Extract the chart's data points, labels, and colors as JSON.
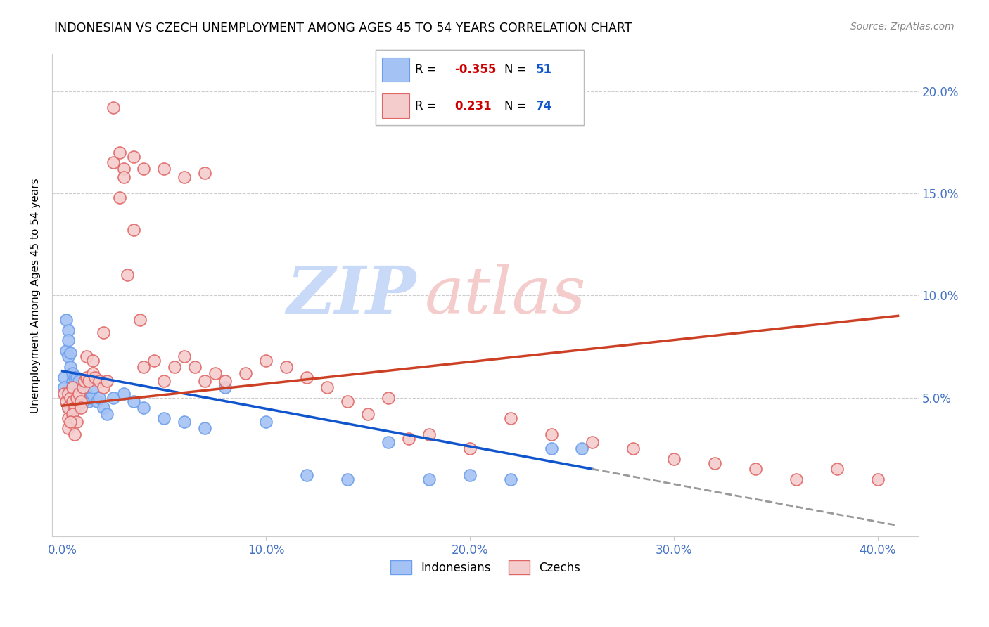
{
  "title": "INDONESIAN VS CZECH UNEMPLOYMENT AMONG AGES 45 TO 54 YEARS CORRELATION CHART",
  "source": "Source: ZipAtlas.com",
  "xlabel_ticks": [
    "0.0%",
    "10.0%",
    "20.0%",
    "30.0%",
    "40.0%"
  ],
  "xlabel_tick_vals": [
    0.0,
    0.1,
    0.2,
    0.3,
    0.4
  ],
  "ylabel_label": "Unemployment Among Ages 45 to 54 years",
  "ylabel_ticks": [
    "5.0%",
    "10.0%",
    "15.0%",
    "20.0%"
  ],
  "ylabel_tick_vals": [
    0.05,
    0.1,
    0.15,
    0.2
  ],
  "xmin": -0.005,
  "xmax": 0.42,
  "ymin": -0.018,
  "ymax": 0.218,
  "blue_color": "#a4c2f4",
  "pink_color": "#f4cccc",
  "blue_edge_color": "#6d9eeb",
  "pink_edge_color": "#e06666",
  "blue_line_color": "#1155cc",
  "pink_line_color": "#cc4125",
  "dashed_line_color": "#999999",
  "watermark_zip_color": "#c9daf8",
  "watermark_atlas_color": "#f4cccc",
  "legend_R_blue": "-0.355",
  "legend_N_blue": "51",
  "legend_R_pink": "0.231",
  "legend_N_pink": "74",
  "legend_label_blue": "Indonesians",
  "legend_label_pink": "Czechs",
  "indonesian_x": [
    0.001,
    0.001,
    0.002,
    0.002,
    0.003,
    0.003,
    0.003,
    0.004,
    0.004,
    0.005,
    0.005,
    0.005,
    0.006,
    0.006,
    0.007,
    0.007,
    0.008,
    0.008,
    0.009,
    0.01,
    0.011,
    0.012,
    0.013,
    0.014,
    0.015,
    0.017,
    0.018,
    0.02,
    0.022,
    0.025,
    0.03,
    0.035,
    0.04,
    0.05,
    0.06,
    0.07,
    0.08,
    0.1,
    0.12,
    0.14,
    0.16,
    0.18,
    0.2,
    0.22,
    0.24,
    0.255,
    0.003,
    0.004,
    0.006,
    0.008,
    0.01
  ],
  "indonesian_y": [
    0.06,
    0.055,
    0.088,
    0.073,
    0.083,
    0.078,
    0.07,
    0.065,
    0.072,
    0.058,
    0.062,
    0.055,
    0.06,
    0.052,
    0.06,
    0.053,
    0.058,
    0.05,
    0.052,
    0.048,
    0.055,
    0.052,
    0.048,
    0.05,
    0.055,
    0.048,
    0.05,
    0.045,
    0.042,
    0.05,
    0.052,
    0.048,
    0.045,
    0.04,
    0.038,
    0.035,
    0.055,
    0.038,
    0.012,
    0.01,
    0.028,
    0.01,
    0.012,
    0.01,
    0.025,
    0.025,
    0.045,
    0.048,
    0.052,
    0.046,
    0.048
  ],
  "czech_x": [
    0.001,
    0.002,
    0.003,
    0.003,
    0.004,
    0.005,
    0.005,
    0.006,
    0.007,
    0.008,
    0.009,
    0.01,
    0.011,
    0.012,
    0.013,
    0.015,
    0.016,
    0.018,
    0.02,
    0.022,
    0.025,
    0.028,
    0.03,
    0.032,
    0.035,
    0.038,
    0.04,
    0.045,
    0.05,
    0.055,
    0.06,
    0.065,
    0.07,
    0.075,
    0.08,
    0.09,
    0.1,
    0.11,
    0.12,
    0.13,
    0.14,
    0.15,
    0.16,
    0.17,
    0.18,
    0.2,
    0.22,
    0.24,
    0.26,
    0.28,
    0.3,
    0.32,
    0.34,
    0.36,
    0.38,
    0.4,
    0.003,
    0.005,
    0.007,
    0.009,
    0.012,
    0.015,
    0.02,
    0.025,
    0.028,
    0.03,
    0.035,
    0.04,
    0.05,
    0.06,
    0.07,
    0.003,
    0.004,
    0.006
  ],
  "czech_y": [
    0.052,
    0.048,
    0.052,
    0.045,
    0.05,
    0.048,
    0.055,
    0.045,
    0.05,
    0.052,
    0.048,
    0.055,
    0.058,
    0.06,
    0.058,
    0.062,
    0.06,
    0.058,
    0.055,
    0.058,
    0.165,
    0.148,
    0.162,
    0.11,
    0.132,
    0.088,
    0.065,
    0.068,
    0.058,
    0.065,
    0.07,
    0.065,
    0.058,
    0.062,
    0.058,
    0.062,
    0.068,
    0.065,
    0.06,
    0.055,
    0.048,
    0.042,
    0.05,
    0.03,
    0.032,
    0.025,
    0.04,
    0.032,
    0.028,
    0.025,
    0.02,
    0.018,
    0.015,
    0.01,
    0.015,
    0.01,
    0.04,
    0.042,
    0.038,
    0.045,
    0.07,
    0.068,
    0.082,
    0.192,
    0.17,
    0.158,
    0.168,
    0.162,
    0.162,
    0.158,
    0.16,
    0.035,
    0.038,
    0.032
  ]
}
